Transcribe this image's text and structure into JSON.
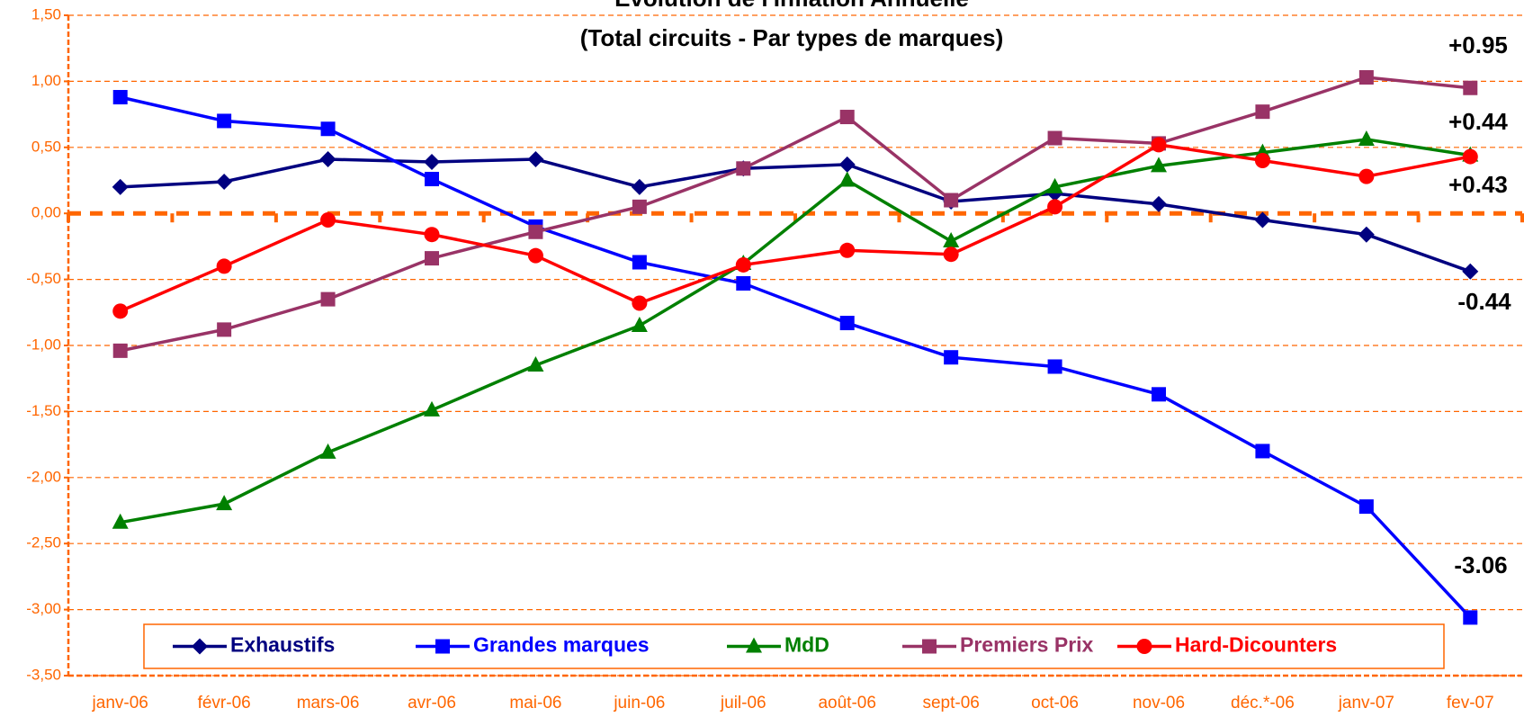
{
  "chart_data": {
    "type": "line",
    "title": "Evolution de l'Inflation Annuelle",
    "subtitle": "(Total circuits - Par types de marques)",
    "categories": [
      "janv-06",
      "févr-06",
      "mars-06",
      "avr-06",
      "mai-06",
      "juin-06",
      "juil-06",
      "août-06",
      "sept-06",
      "oct-06",
      "nov-06",
      "déc.*-06",
      "janv-07",
      "fev-07"
    ],
    "series": [
      {
        "name": "Exhaustifs",
        "color": "#000080",
        "marker": "diamond",
        "values": [
          0.2,
          0.24,
          0.41,
          0.39,
          0.41,
          0.2,
          0.34,
          0.37,
          0.09,
          0.15,
          0.07,
          -0.05,
          -0.16,
          -0.44
        ]
      },
      {
        "name": "Grandes marques",
        "color": "#0000ff",
        "marker": "square",
        "values": [
          0.88,
          0.7,
          0.64,
          0.26,
          -0.1,
          -0.37,
          -0.53,
          -0.83,
          -1.09,
          -1.16,
          -1.37,
          -1.8,
          -2.22,
          -3.06
        ]
      },
      {
        "name": "MdD",
        "color": "#008000",
        "marker": "triangle",
        "values": [
          -2.34,
          -2.2,
          -1.81,
          -1.49,
          -1.15,
          -0.85,
          -0.38,
          0.25,
          -0.21,
          0.2,
          0.36,
          0.46,
          0.56,
          0.44
        ]
      },
      {
        "name": "Premiers Prix",
        "color": "#993366",
        "marker": "square",
        "values": [
          -1.04,
          -0.88,
          -0.65,
          -0.34,
          -0.14,
          0.05,
          0.34,
          0.73,
          0.1,
          0.57,
          0.53,
          0.77,
          1.03,
          0.95
        ]
      },
      {
        "name": "Hard-Dicounters",
        "color": "#ff0000",
        "marker": "circle",
        "values": [
          -0.74,
          -0.4,
          -0.05,
          -0.16,
          -0.32,
          -0.68,
          -0.39,
          -0.28,
          -0.31,
          0.05,
          0.52,
          0.4,
          0.28,
          0.43
        ]
      }
    ],
    "annotations": [
      "+0.95",
      "+0.44",
      "+0.43",
      "-0.44",
      "-3.06"
    ],
    "ylim": [
      -3.5,
      1.5
    ],
    "yticks": [
      {
        "value": -3.5,
        "label": "-3,50"
      },
      {
        "value": -3,
        "label": "-3,00"
      },
      {
        "value": -2.5,
        "label": "-2,50"
      },
      {
        "value": -2,
        "label": "-2,00"
      },
      {
        "value": -1.5,
        "label": "-1,50"
      },
      {
        "value": -1,
        "label": "-1,00"
      },
      {
        "value": -0.5,
        "label": "-0,50"
      },
      {
        "value": 0,
        "label": "0,00"
      },
      {
        "value": 0.5,
        "label": "0,50"
      },
      {
        "value": 1,
        "label": "1,00"
      },
      {
        "value": 1.5,
        "label": "1,50"
      }
    ],
    "grid": true,
    "legend": "bottom"
  }
}
